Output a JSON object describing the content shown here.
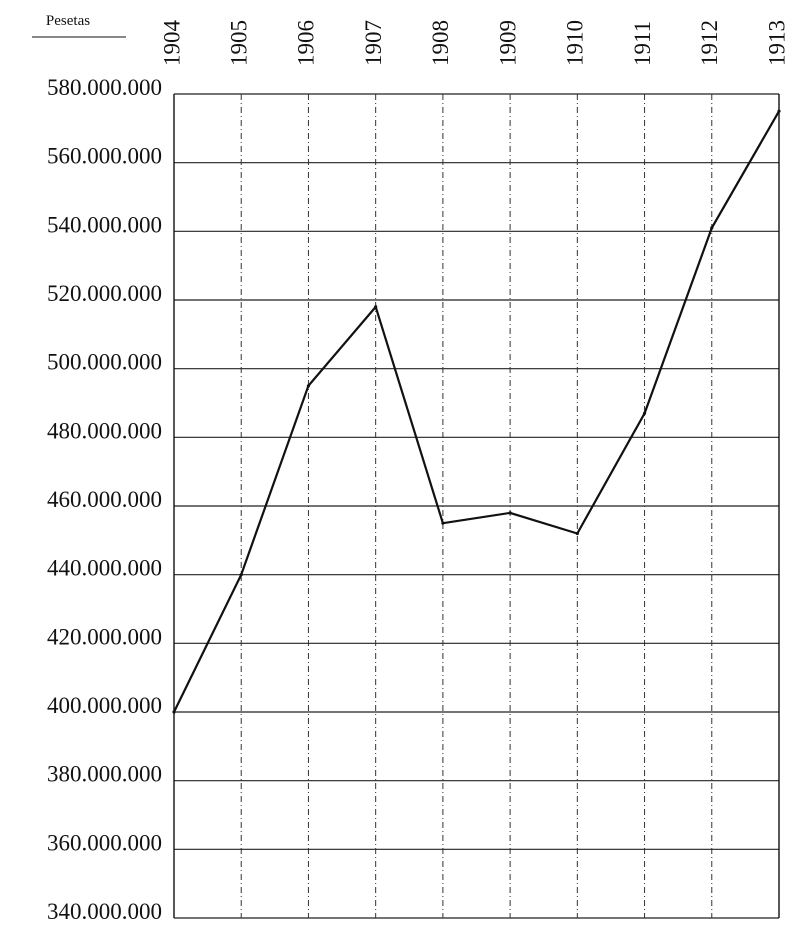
{
  "chart_data": {
    "type": "line",
    "unit_label": "Pesetas",
    "x": [
      "1904",
      "1905",
      "1906",
      "1907",
      "1908",
      "1909",
      "1910",
      "1911",
      "1912",
      "1913"
    ],
    "series": [
      {
        "values": [
          400000000,
          440000000,
          495000000,
          518000000,
          455000000,
          458000000,
          452000000,
          487000000,
          541000000,
          575000000
        ]
      }
    ],
    "ylim": [
      340000000,
      580000000
    ],
    "yticks": [
      {
        "value": 580000000,
        "label": "580.000.000"
      },
      {
        "value": 560000000,
        "label": "560.000.000"
      },
      {
        "value": 540000000,
        "label": "540.000.000"
      },
      {
        "value": 520000000,
        "label": "520.000.000"
      },
      {
        "value": 500000000,
        "label": "500.000.000"
      },
      {
        "value": 480000000,
        "label": "480.000.000"
      },
      {
        "value": 460000000,
        "label": "460.000.000"
      },
      {
        "value": 440000000,
        "label": "440.000.000"
      },
      {
        "value": 420000000,
        "label": "420.000.000"
      },
      {
        "value": 400000000,
        "label": "400.000.000"
      },
      {
        "value": 380000000,
        "label": "380.000.000"
      },
      {
        "value": 360000000,
        "label": "360.000.000"
      },
      {
        "value": 340000000,
        "label": "340.000.000"
      }
    ],
    "grid": true,
    "x_axis_position": "top",
    "x_tick_rotation": "vertical"
  }
}
